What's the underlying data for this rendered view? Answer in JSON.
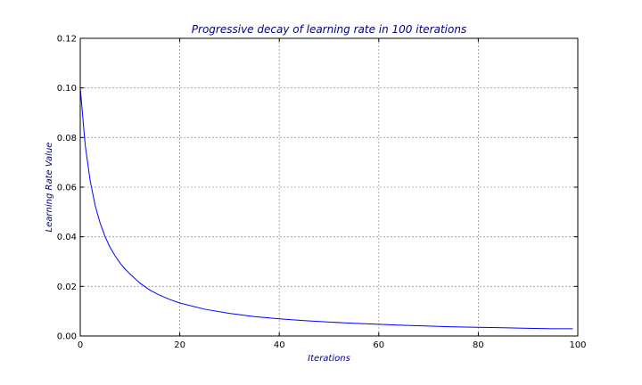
{
  "chart_data": {
    "type": "line",
    "title": "Progressive decay of learning rate in 100 iterations",
    "xlabel": "Iterations",
    "ylabel": "Learning Rate Value",
    "xlim": [
      0,
      100
    ],
    "ylim": [
      0,
      0.12
    ],
    "xticks": [
      "0",
      "20",
      "40",
      "60",
      "80",
      "100"
    ],
    "yticks": [
      "0.00",
      "0.02",
      "0.04",
      "0.06",
      "0.08",
      "0.10",
      "0.12"
    ],
    "grid": true,
    "line_color": "#0000ff",
    "series": [
      {
        "x": [
          0,
          1,
          2,
          3,
          4,
          5,
          6,
          7,
          8,
          9,
          10,
          12,
          14,
          16,
          18,
          20,
          25,
          30,
          35,
          40,
          45,
          50,
          55,
          60,
          65,
          70,
          75,
          80,
          85,
          90,
          95,
          99
        ],
        "values": [
          0.1,
          0.0769,
          0.0625,
          0.0526,
          0.0455,
          0.04,
          0.0357,
          0.0323,
          0.0294,
          0.027,
          0.025,
          0.0213,
          0.0185,
          0.0164,
          0.0147,
          0.0133,
          0.0108,
          0.0091,
          0.0078,
          0.0069,
          0.0062,
          0.0056,
          0.0051,
          0.0047,
          0.0043,
          0.004,
          0.0037,
          0.0035,
          0.0033,
          0.0031,
          0.0029,
          0.0029
        ]
      }
    ]
  }
}
